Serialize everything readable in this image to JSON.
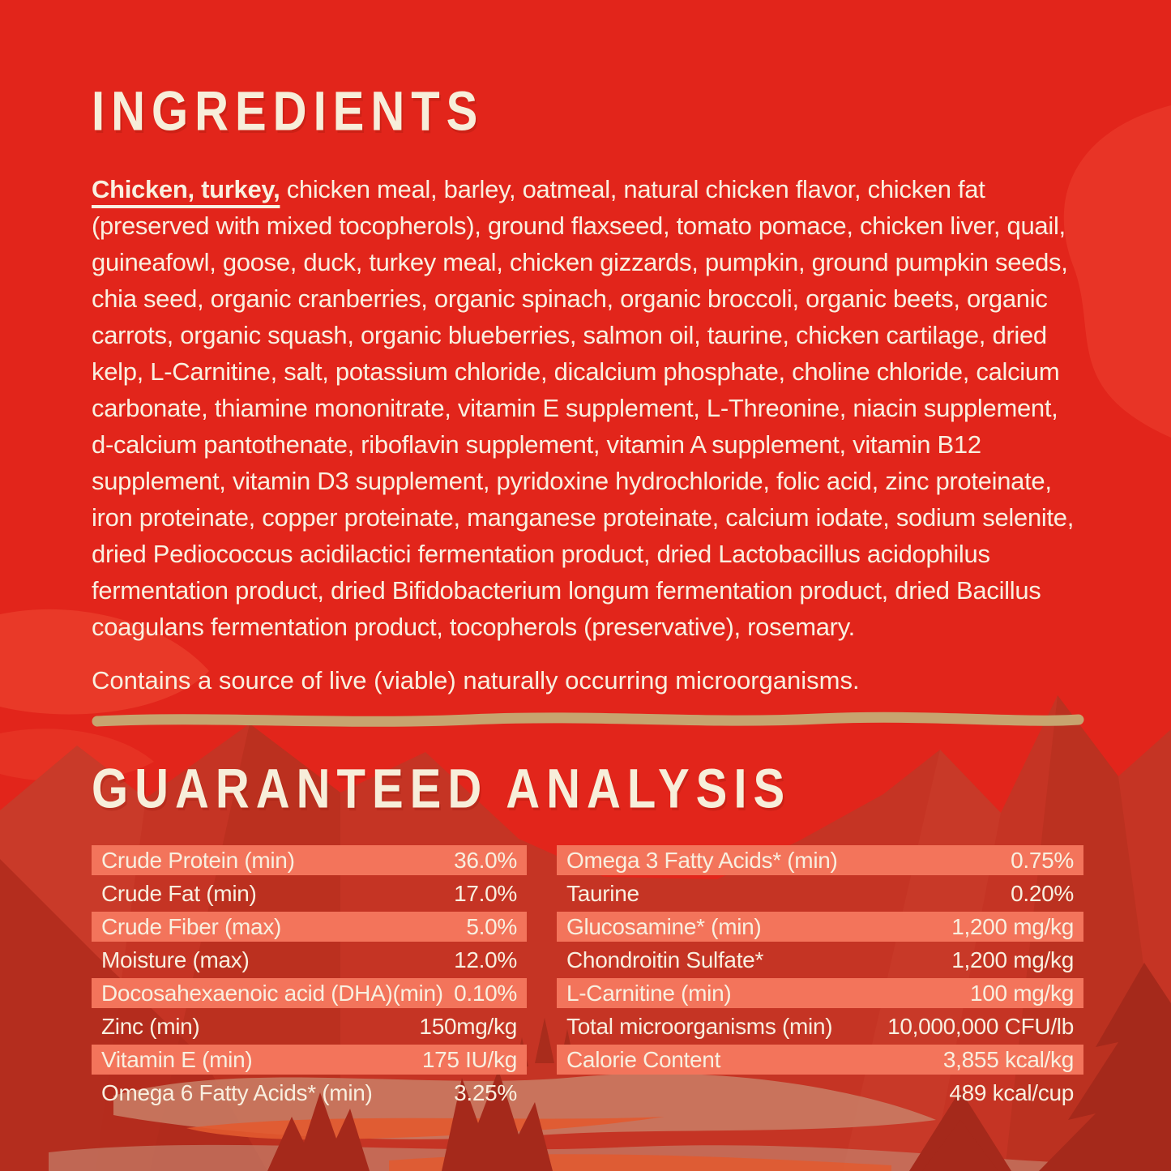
{
  "colors": {
    "background_red": "#E2251B",
    "mountain_red": "#C53424",
    "mountain_shadow": "#B22D1C",
    "row_highlight": "#F3745B",
    "text_cream": "#F8EFDF",
    "heading_cream": "#F7EEDA",
    "divider_tan": "#C7A46F",
    "tree_dark": "#A5291B",
    "lake_orange": "#E25A2F",
    "mist_mauve": "#C97F66"
  },
  "ingredients": {
    "heading": "INGREDIENTS",
    "lead": "Chicken, turkey,",
    "body": " chicken meal, barley, oatmeal, natural chicken flavor, chicken fat (preserved with mixed tocopherols), ground flaxseed, tomato pomace, chicken liver, quail, guineafowl, goose, duck, turkey meal, chicken gizzards, pumpkin, ground pumpkin seeds, chia seed, organic cranberries, organic spinach, organic broccoli, organic beets, organic carrots, organic squash, organic blueberries, salmon oil, taurine, chicken cartilage, dried kelp, L-Carnitine, salt, potassium chloride, dicalcium phosphate, choline chloride, calcium carbonate, thiamine mononitrate, vitamin E supplement, L-Threonine, niacin supplement, d-calcium pantothenate, riboflavin supplement, vitamin A supplement, vitamin B12 supplement, vitamin D3 supplement, pyridoxine hydrochloride, folic acid, zinc proteinate, iron proteinate, copper proteinate, manganese proteinate, calcium iodate, sodium selenite, dried Pediococcus acidilactici fermentation product, dried Lactobacillus acidophilus fermentation product, dried Bifidobacterium longum fermentation product, dried Bacillus coagulans fermentation product, tocopherols (preservative), rosemary.",
    "note": "Contains a source of live (viable) naturally occurring microorganisms."
  },
  "guaranteed_analysis": {
    "heading": "GUARANTEED ANALYSIS",
    "left_rows": [
      {
        "label": "Crude Protein (min)",
        "value": "36.0%"
      },
      {
        "label": "Crude Fat (min)",
        "value": "17.0%"
      },
      {
        "label": "Crude Fiber (max)",
        "value": "5.0%"
      },
      {
        "label": "Moisture (max)",
        "value": "12.0%"
      },
      {
        "label": "Docosahexaenoic acid (DHA)(min)",
        "value": "0.10%"
      },
      {
        "label": "Zinc (min)",
        "value": "150mg/kg"
      },
      {
        "label": "Vitamin E (min)",
        "value": "175 IU/kg"
      },
      {
        "label": "Omega 6 Fatty Acids* (min)",
        "value": "3.25%"
      }
    ],
    "right_rows": [
      {
        "label": "Omega 3 Fatty Acids* (min)",
        "value": "0.75%"
      },
      {
        "label": "Taurine",
        "value": "0.20%"
      },
      {
        "label": "Glucosamine* (min)",
        "value": "1,200 mg/kg"
      },
      {
        "label": "Chondroitin Sulfate*",
        "value": "1,200 mg/kg"
      },
      {
        "label": "L-Carnitine (min)",
        "value": "100 mg/kg"
      },
      {
        "label": "Total microorganisms (min)",
        "value": "10,000,000 CFU/lb"
      },
      {
        "label": "Calorie Content",
        "value": "3,855 kcal/kg"
      },
      {
        "label": "",
        "value": "489 kcal/cup"
      }
    ]
  }
}
